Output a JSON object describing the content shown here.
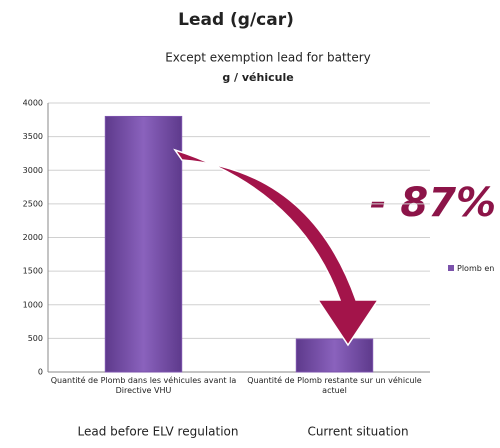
{
  "chart_data": {
    "type": "bar",
    "title": "Lead (g/car)",
    "subtitle": "Except exemption lead for battery",
    "chart_title": "g / véhicule",
    "categories": [
      "Quantité de Plomb dans les véhicules avant la Directive VHU",
      "Quantité de Plomb restante sur un véhicule actuel"
    ],
    "values": [
      3800,
      490
    ],
    "color": "#7b52ab",
    "series_name": "Plomb en",
    "legend": "right",
    "ylim": [
      0,
      4000
    ],
    "yticks": [
      0,
      500,
      1000,
      1500,
      2000,
      2500,
      3000,
      3500,
      4000
    ],
    "grid": true,
    "annotation": "- 87%",
    "bottom_labels": [
      "Lead before ELV regulation",
      "Current situation"
    ]
  }
}
